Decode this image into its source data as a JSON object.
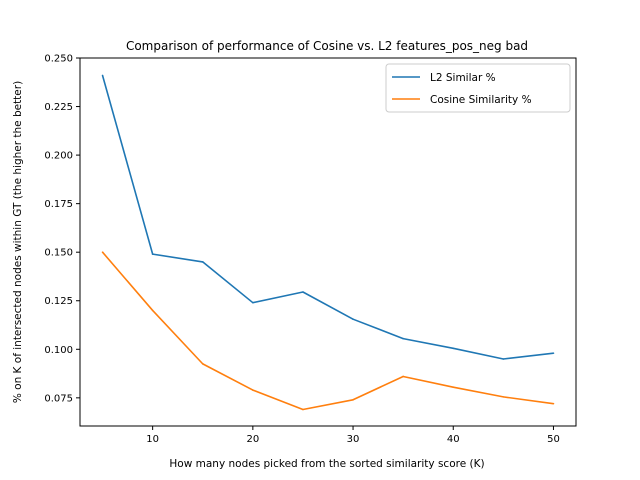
{
  "chart_data": {
    "type": "line",
    "title": "Comparison of performance of Cosine vs. L2 features_pos_neg bad",
    "xlabel": "How many nodes picked from the sorted similarity score (K)",
    "ylabel": "% on K of intersected nodes within GT (the higher the better)",
    "x": [
      5,
      10,
      15,
      20,
      25,
      30,
      35,
      40,
      45,
      50
    ],
    "xlim": [
      2.75,
      52.25
    ],
    "ylim": [
      0.0605,
      0.25
    ],
    "xticks": [
      10,
      20,
      30,
      40,
      50
    ],
    "yticks": [
      0.075,
      0.1,
      0.125,
      0.15,
      0.175,
      0.2,
      0.225,
      0.25
    ],
    "ytick_labels": [
      "0.075",
      "0.100",
      "0.125",
      "0.150",
      "0.175",
      "0.200",
      "0.225",
      "0.250"
    ],
    "grid": false,
    "legend_position": "top-right",
    "series": [
      {
        "name": "L2 Similar %",
        "color": "#1f77b4",
        "values": [
          0.241,
          0.149,
          0.145,
          0.124,
          0.1295,
          0.1155,
          0.1055,
          0.1005,
          0.095,
          0.098
        ]
      },
      {
        "name": "Cosine Similarity %",
        "color": "#ff7f0e",
        "values": [
          0.15,
          0.12,
          0.0925,
          0.079,
          0.069,
          0.074,
          0.086,
          0.0805,
          0.0755,
          0.072
        ]
      }
    ]
  }
}
